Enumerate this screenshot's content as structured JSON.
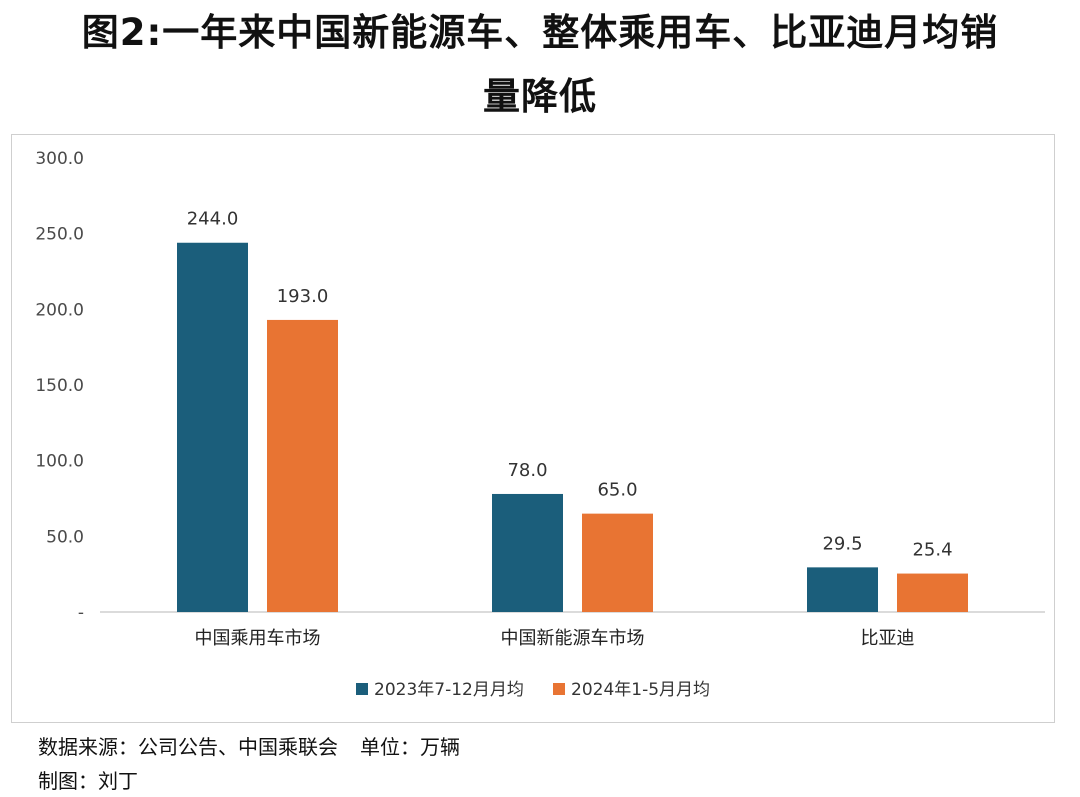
{
  "title_line1": "图2:一年来中国新能源车、整体乘用车、比亚迪月均销",
  "title_line2": "量降低",
  "footer": {
    "source": "数据来源：公司公告、中国乘联会",
    "unit": "单位：万辆",
    "author": "制图：刘丁"
  },
  "chart_data": {
    "type": "bar",
    "categories": [
      "中国乘用车市场",
      "中国新能源车市场",
      "比亚迪"
    ],
    "series": [
      {
        "name": "2023年7-12月月均",
        "values": [
          244.0,
          78.0,
          29.5
        ],
        "color": "#1b5e7b"
      },
      {
        "name": "2024年1-5月月均",
        "values": [
          193.0,
          65.0,
          25.4
        ],
        "color": "#e87433"
      }
    ],
    "y_ticks": [
      "-",
      "50.0",
      "100.0",
      "150.0",
      "200.0",
      "250.0",
      "300.0"
    ],
    "ylim": [
      0,
      300
    ],
    "value_labels": [
      [
        "244.0",
        "78.0",
        "29.5"
      ],
      [
        "193.0",
        "65.0",
        "25.4"
      ]
    ],
    "grid": false,
    "legend_position": "bottom"
  }
}
